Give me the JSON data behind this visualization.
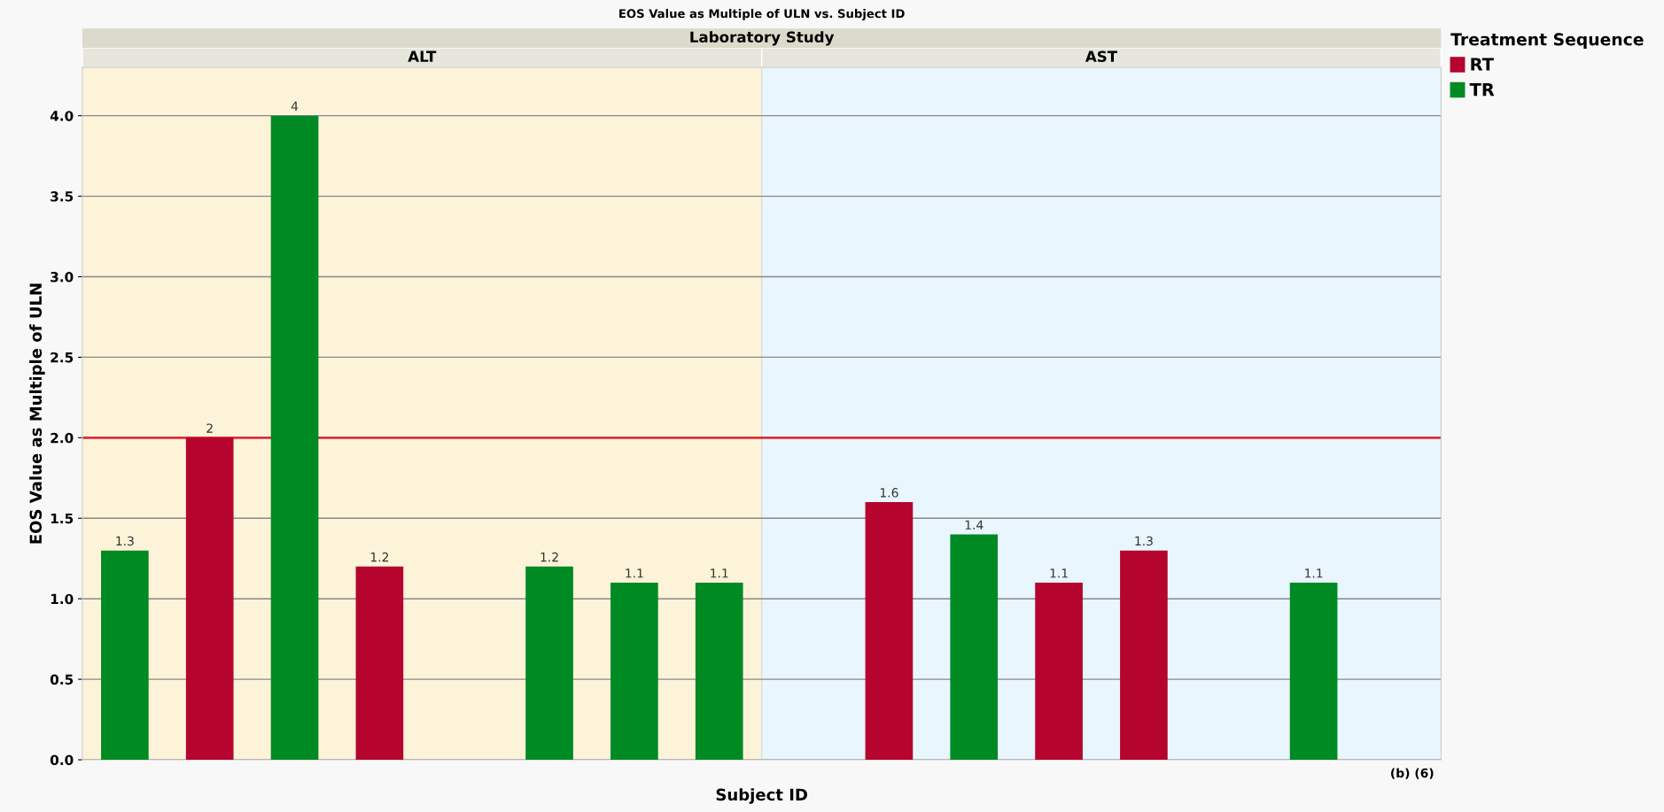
{
  "chart_data": {
    "type": "bar",
    "title": "EOS Value as Multiple of ULN vs. Subject ID",
    "subtitle": "Laboratory Study",
    "ylabel": "EOS Value as Multiple of ULN",
    "xlabel": "Subject ID",
    "legend_title": "Treatment Sequence",
    "legend": "right",
    "annotations": [
      "ALT",
      "AST",
      "(b) (6)"
    ],
    "categories": [
      null,
      null,
      null,
      null,
      null,
      null,
      null,
      null,
      null,
      null,
      null,
      null,
      null,
      null,
      null,
      null
    ],
    "series": [
      {
        "name": "RT",
        "color": "#b5052e",
        "values": [
          null,
          2,
          null,
          1.2,
          null,
          null,
          null,
          null,
          null,
          1.6,
          null,
          1.1,
          1.3,
          null,
          null,
          null
        ]
      },
      {
        "name": "TR",
        "color": "#008a24",
        "values": [
          1.3,
          null,
          4,
          null,
          null,
          1.2,
          1.1,
          1.1,
          null,
          null,
          1.4,
          null,
          null,
          null,
          1.1,
          null
        ]
      }
    ],
    "ylim": [
      0,
      4.3
    ],
    "yticks": [
      {
        "value": 0,
        "label": "0.0"
      },
      {
        "value": 0.5,
        "label": "0.5"
      },
      {
        "value": 1,
        "label": "1.0"
      },
      {
        "value": 1.5,
        "label": "1.5"
      },
      {
        "value": 2,
        "label": "2.0"
      },
      {
        "value": 2.5,
        "label": "2.5"
      },
      {
        "value": 3,
        "label": "3.0"
      },
      {
        "value": 3.5,
        "label": "3.5"
      },
      {
        "value": 4,
        "label": "4.0"
      }
    ],
    "ref_lines": [
      {
        "axis": "y",
        "value": 2,
        "color": "#d9303e"
      }
    ],
    "data_labels": true,
    "grid": "y"
  }
}
